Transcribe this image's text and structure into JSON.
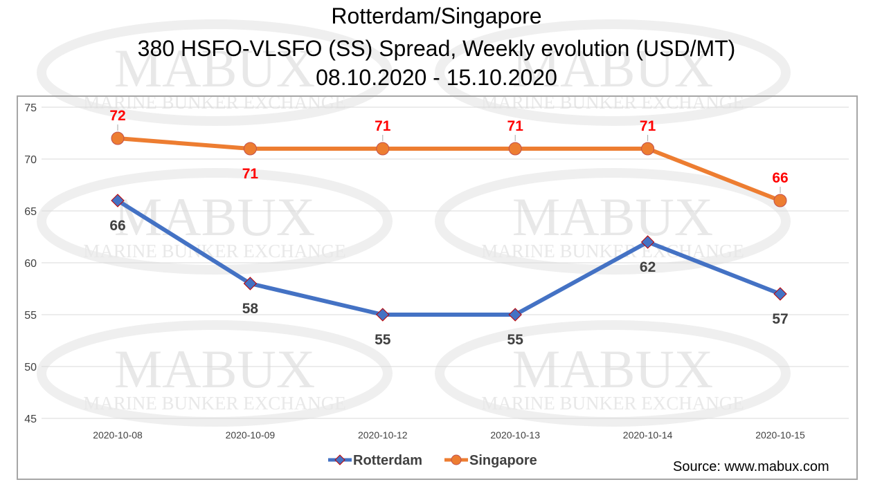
{
  "watermark": {
    "main": "MABUX",
    "sub": "MARINE BUNKER EXCHANGE"
  },
  "title_lines": [
    "Rotterdam/Singapore",
    "380 HSFO-VLSFO (SS) Spread, Weekly evolution (USD/MT)",
    "08.10.2020 - 15.10.2020"
  ],
  "source": "Source: www.mabux.com",
  "chart_data": {
    "type": "line",
    "title": "Rotterdam/Singapore\n380 HSFO-VLSFO (SS) Spread, Weekly evolution (USD/MT)\n08.10.2020 - 15.10.2020",
    "categories": [
      "2020-10-08",
      "2020-10-09",
      "2020-10-12",
      "2020-10-13",
      "2020-10-14",
      "2020-10-15"
    ],
    "ylim": [
      45,
      75
    ],
    "yticks": [
      45,
      50,
      55,
      60,
      65,
      70,
      75
    ],
    "grid": true,
    "legend": "bottom-center",
    "series": [
      {
        "name": "Rotterdam",
        "values": [
          66,
          58,
          55,
          55,
          62,
          57
        ],
        "color": "#4472c4",
        "label_color": "#404040",
        "marker": "diamond"
      },
      {
        "name": "Singapore",
        "values": [
          72,
          71,
          71,
          71,
          71,
          66
        ],
        "color": "#ed7d31",
        "label_color": "#ff0000",
        "marker": "circle"
      }
    ]
  }
}
